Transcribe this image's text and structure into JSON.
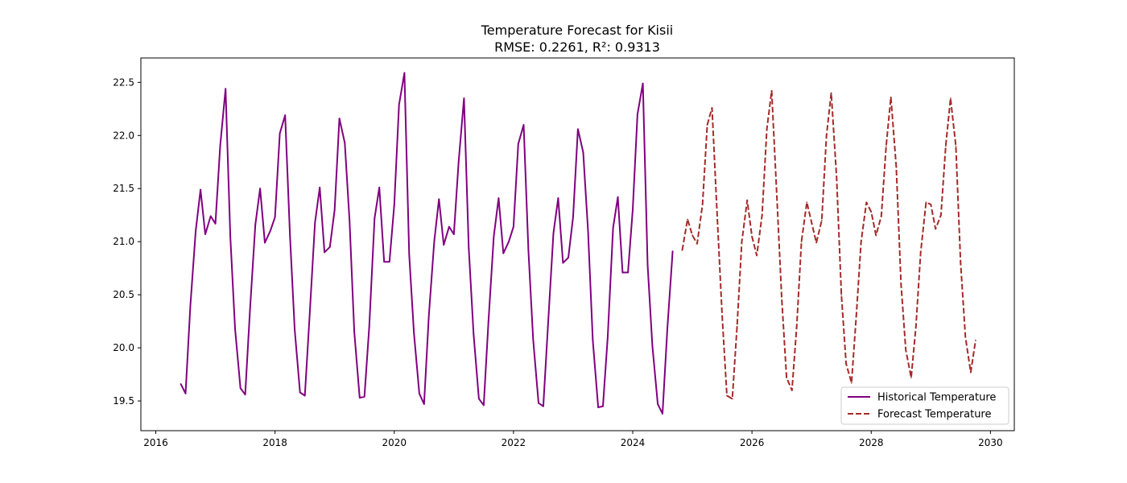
{
  "chart_data": {
    "type": "line",
    "title": "Temperature Forecast for Kisii",
    "subtitle": "RMSE: 0.2261, R²: 0.9313",
    "xlabel": "",
    "ylabel": "",
    "xlim": [
      2015.75,
      2030.4
    ],
    "ylim": [
      19.22,
      22.73
    ],
    "grid": false,
    "legend_position": "lower-right",
    "x_ticks": [
      2016,
      2018,
      2020,
      2022,
      2024,
      2026,
      2028,
      2030
    ],
    "y_ticks": [
      19.5,
      20.0,
      20.5,
      21.0,
      21.5,
      22.0,
      22.5
    ],
    "series": [
      {
        "name": "Historical Temperature",
        "color": "#800080",
        "style": "solid",
        "x": [
          2016.42,
          2016.5,
          2016.58,
          2016.67,
          2016.75,
          2016.83,
          2016.92,
          2017.0,
          2017.08,
          2017.17,
          2017.25,
          2017.33,
          2017.42,
          2017.5,
          2017.58,
          2017.67,
          2017.75,
          2017.83,
          2017.92,
          2018.0,
          2018.08,
          2018.17,
          2018.25,
          2018.33,
          2018.42,
          2018.5,
          2018.58,
          2018.67,
          2018.75,
          2018.83,
          2018.92,
          2019.0,
          2019.08,
          2019.17,
          2019.25,
          2019.33,
          2019.42,
          2019.5,
          2019.58,
          2019.67,
          2019.75,
          2019.83,
          2019.92,
          2020.0,
          2020.08,
          2020.17,
          2020.25,
          2020.33,
          2020.42,
          2020.5,
          2020.58,
          2020.67,
          2020.75,
          2020.83,
          2020.92,
          2021.0,
          2021.08,
          2021.17,
          2021.25,
          2021.33,
          2021.42,
          2021.5,
          2021.58,
          2021.67,
          2021.75,
          2021.83,
          2021.92,
          2022.0,
          2022.08,
          2022.17,
          2022.25,
          2022.33,
          2022.42,
          2022.5,
          2022.58,
          2022.67,
          2022.75,
          2022.83,
          2022.92,
          2023.0,
          2023.08,
          2023.17,
          2023.25,
          2023.33,
          2023.42,
          2023.5,
          2023.58,
          2023.67,
          2023.75,
          2023.83,
          2023.92,
          2024.0,
          2024.08,
          2024.17,
          2024.25,
          2024.33,
          2024.42,
          2024.5,
          2024.58,
          2024.67
        ],
        "values": [
          19.66,
          19.57,
          20.4,
          21.1,
          21.49,
          21.07,
          21.24,
          21.17,
          21.9,
          22.44,
          21.05,
          20.18,
          19.62,
          19.56,
          20.35,
          21.16,
          21.5,
          20.99,
          21.1,
          21.23,
          22.02,
          22.19,
          21.06,
          20.17,
          19.58,
          19.55,
          20.3,
          21.18,
          21.51,
          20.9,
          20.95,
          21.3,
          22.16,
          21.93,
          21.2,
          20.15,
          19.53,
          19.54,
          20.2,
          21.22,
          21.51,
          20.81,
          20.81,
          21.35,
          22.29,
          22.59,
          20.88,
          20.14,
          19.57,
          19.47,
          20.3,
          21.0,
          21.4,
          20.97,
          21.14,
          21.07,
          21.75,
          22.35,
          20.94,
          20.13,
          19.52,
          19.46,
          20.25,
          21.05,
          21.41,
          20.89,
          21.0,
          21.14,
          21.92,
          22.1,
          20.92,
          20.08,
          19.48,
          19.45,
          20.22,
          21.08,
          21.41,
          20.8,
          20.85,
          21.23,
          22.06,
          21.84,
          21.1,
          20.07,
          19.44,
          19.45,
          20.1,
          21.13,
          21.42,
          20.71,
          20.71,
          21.3,
          22.2,
          22.49,
          20.78,
          20.02,
          19.47,
          19.38,
          20.18,
          20.91
        ]
      },
      {
        "name": "Forecast Temperature",
        "color": "#a52a2a",
        "style": "dashed",
        "x": [
          2024.83,
          2024.92,
          2025.0,
          2025.08,
          2025.17,
          2025.25,
          2025.33,
          2025.42,
          2025.5,
          2025.58,
          2025.67,
          2025.75,
          2025.83,
          2025.92,
          2026.0,
          2026.08,
          2026.17,
          2026.25,
          2026.33,
          2026.42,
          2026.5,
          2026.58,
          2026.67,
          2026.75,
          2026.83,
          2026.92,
          2027.0,
          2027.08,
          2027.17,
          2027.25,
          2027.33,
          2027.42,
          2027.5,
          2027.58,
          2027.67,
          2027.75,
          2027.83,
          2027.92,
          2028.0,
          2028.08,
          2028.17,
          2028.25,
          2028.33,
          2028.42,
          2028.5,
          2028.58,
          2028.67,
          2028.75,
          2028.83,
          2028.92,
          2029.0,
          2029.08,
          2029.17,
          2029.25,
          2029.33,
          2029.42,
          2029.5,
          2029.58,
          2029.67,
          2029.75
        ],
        "values": [
          20.92,
          21.21,
          21.06,
          20.98,
          21.35,
          22.1,
          22.26,
          21.2,
          20.3,
          19.55,
          19.52,
          20.2,
          21.0,
          21.39,
          21.05,
          20.87,
          21.25,
          22.06,
          22.42,
          21.4,
          20.45,
          19.72,
          19.6,
          20.2,
          21.0,
          21.37,
          21.18,
          20.99,
          21.2,
          22.0,
          22.4,
          21.6,
          20.5,
          19.85,
          19.67,
          20.3,
          21.0,
          21.37,
          21.28,
          21.06,
          21.24,
          21.9,
          22.36,
          21.7,
          20.6,
          19.98,
          19.72,
          20.2,
          20.9,
          21.37,
          21.35,
          21.12,
          21.25,
          21.9,
          22.35,
          21.9,
          20.8,
          20.1,
          19.77,
          20.07
        ]
      }
    ]
  }
}
